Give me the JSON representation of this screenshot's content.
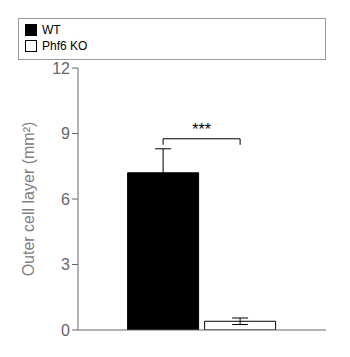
{
  "chart_data": {
    "type": "bar",
    "categories": [
      null
    ],
    "series": [
      {
        "name": "WT",
        "color": "black",
        "values": [
          7.2
        ],
        "errors": [
          1.1
        ]
      },
      {
        "name": "Phf6 KO",
        "color": "white",
        "values": [
          0.4
        ],
        "errors": [
          0.15
        ]
      }
    ],
    "ylabel": "Outer cell layer (mm²)",
    "ylim": [
      0,
      12
    ],
    "yticks": [
      0,
      3,
      6,
      9,
      12
    ],
    "annotations": [
      "***"
    ],
    "legend": "upper right",
    "tick_labels": "y",
    "grid": false
  }
}
